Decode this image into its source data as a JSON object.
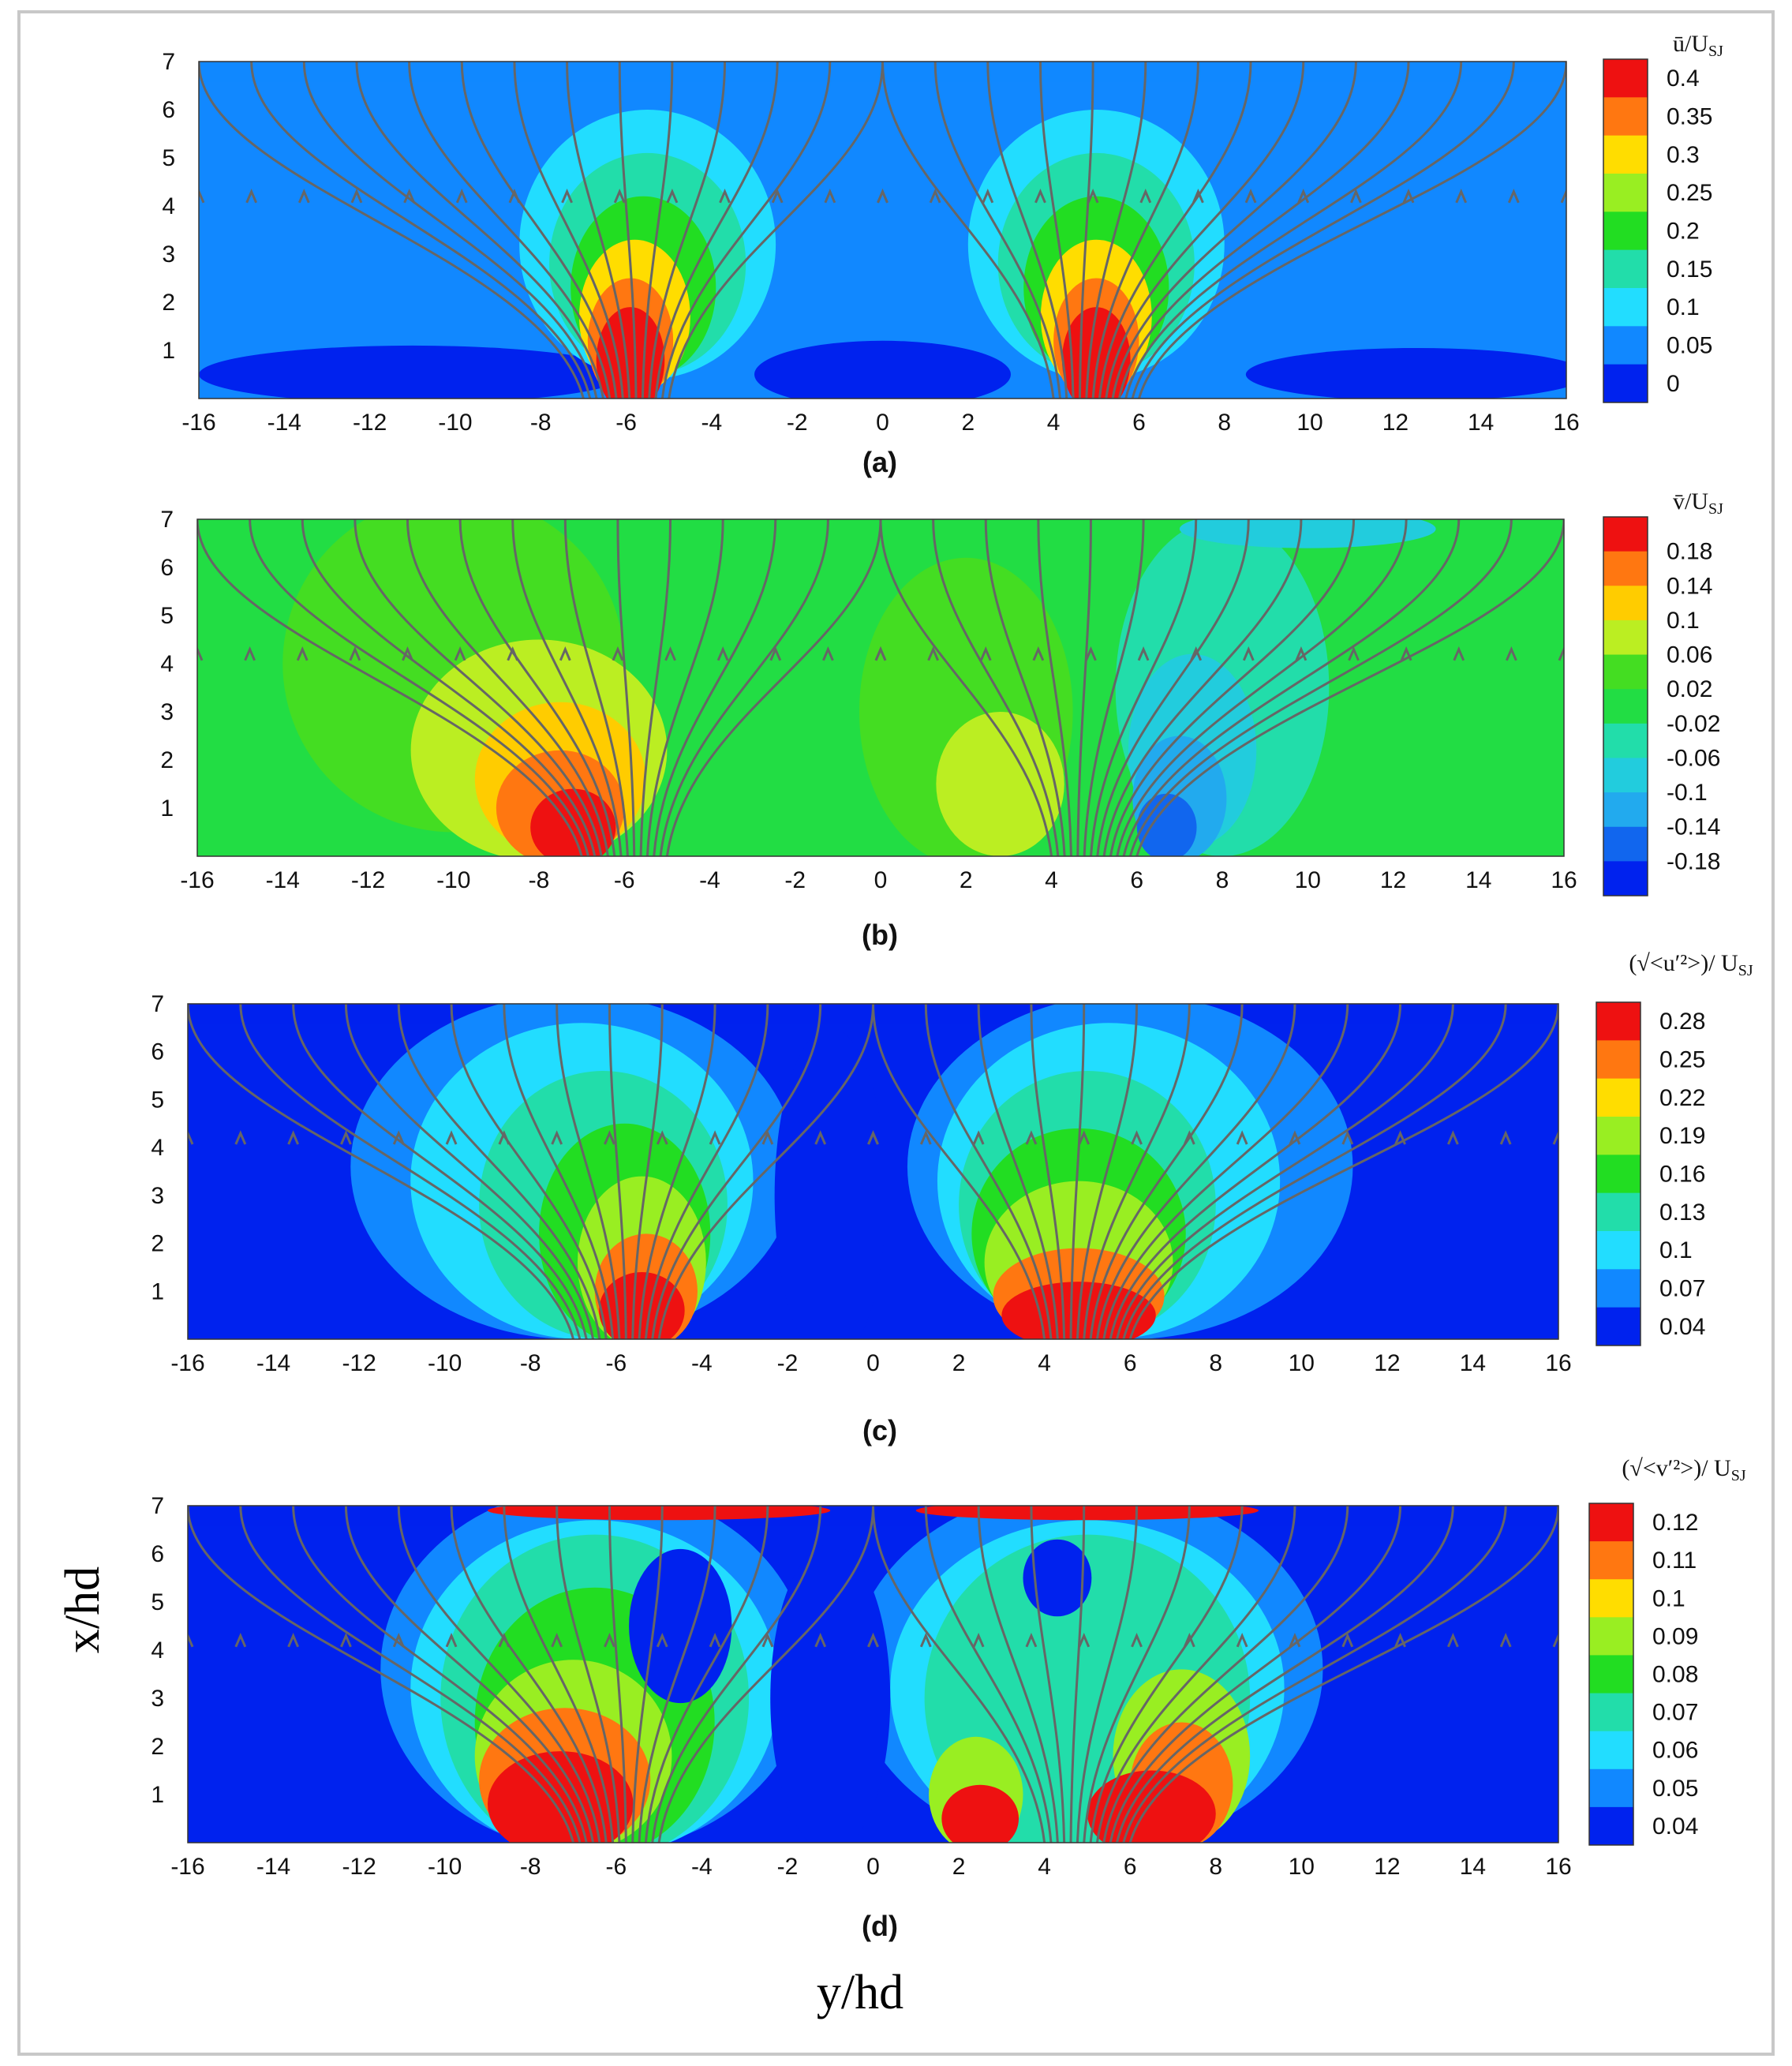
{
  "figure": {
    "xlabel": "y/hd",
    "ylabel": "x/hd"
  },
  "chart_data": [
    {
      "type": "heatmap",
      "panel": "(a)",
      "colorbar_title_main": "ū/U",
      "colorbar_title_sub": "SJ",
      "colorbar_ticks": [
        "0.4",
        "0.35",
        "0.3",
        "0.25",
        "0.2",
        "0.15",
        "0.1",
        "0.05",
        "0"
      ],
      "colorbar_colors": [
        "#ee1111",
        "#ff7711",
        "#ffdd00",
        "#99ee22",
        "#22dd22",
        "#22ddaa",
        "#22ddff",
        "#1188ff",
        "#0022ee"
      ],
      "background_level": 1,
      "x_ticks": [
        -16,
        -14,
        -12,
        -10,
        -8,
        -6,
        -4,
        -2,
        0,
        2,
        4,
        6,
        8,
        10,
        12,
        14,
        16
      ],
      "y_ticks": [
        1,
        2,
        3,
        4,
        5,
        6,
        7
      ],
      "xlim": [
        -16,
        16
      ],
      "ylim": [
        0,
        7
      ],
      "regions": [
        {
          "level": 0,
          "cx": -11,
          "cy": 0.5,
          "rx": 5,
          "ry": 0.6
        },
        {
          "level": 0,
          "cx": 0,
          "cy": 0.5,
          "rx": 3,
          "ry": 0.7
        },
        {
          "level": 0,
          "cx": 12.5,
          "cy": 0.5,
          "rx": 4,
          "ry": 0.55
        },
        {
          "level": 2,
          "cx": -5.5,
          "cy": 3.2,
          "rx": 3,
          "ry": 2.8
        },
        {
          "level": 3,
          "cx": -5.5,
          "cy": 2.8,
          "rx": 2.3,
          "ry": 2.3
        },
        {
          "level": 4,
          "cx": -5.6,
          "cy": 2.3,
          "rx": 1.7,
          "ry": 1.9
        },
        {
          "level": 6,
          "cx": -5.8,
          "cy": 1.7,
          "rx": 1.3,
          "ry": 1.6
        },
        {
          "level": 7,
          "cx": -5.9,
          "cy": 1.2,
          "rx": 1.0,
          "ry": 1.3
        },
        {
          "level": 8,
          "cx": -5.9,
          "cy": 0.8,
          "rx": 0.8,
          "ry": 1.1
        },
        {
          "level": 2,
          "cx": 5,
          "cy": 3.2,
          "rx": 3,
          "ry": 2.8
        },
        {
          "level": 3,
          "cx": 5,
          "cy": 2.8,
          "rx": 2.3,
          "ry": 2.3
        },
        {
          "level": 4,
          "cx": 5,
          "cy": 2.3,
          "rx": 1.7,
          "ry": 1.9
        },
        {
          "level": 6,
          "cx": 5,
          "cy": 1.7,
          "rx": 1.3,
          "ry": 1.6
        },
        {
          "level": 7,
          "cx": 5,
          "cy": 1.2,
          "rx": 1.0,
          "ry": 1.3
        },
        {
          "level": 8,
          "cx": 5,
          "cy": 0.8,
          "rx": 0.8,
          "ry": 1.1
        }
      ],
      "streamline_sources": [
        -7,
        4
      ]
    },
    {
      "type": "heatmap",
      "panel": "(b)",
      "colorbar_title_main": "v̄/U",
      "colorbar_title_sub": "SJ",
      "colorbar_ticks": [
        "0.18",
        "0.14",
        "0.1",
        "0.06",
        "0.02",
        "-0.02",
        "-0.06",
        "-0.1",
        "-0.14",
        "-0.18"
      ],
      "colorbar_colors": [
        "#ee1111",
        "#ff7711",
        "#ffcc00",
        "#bbee22",
        "#44dd22",
        "#22dd44",
        "#22ddaa",
        "#22ccdd",
        "#22aaee",
        "#1166ee",
        "#0022ee"
      ],
      "background_level": 5,
      "x_ticks": [
        -16,
        -14,
        -12,
        -10,
        -8,
        -6,
        -4,
        -2,
        0,
        2,
        4,
        6,
        8,
        10,
        12,
        14,
        16
      ],
      "y_ticks": [
        1,
        2,
        3,
        4,
        5,
        6,
        7
      ],
      "xlim": [
        -16,
        16
      ],
      "ylim": [
        0,
        7
      ],
      "regions": [
        {
          "level": 6,
          "cx": -10,
          "cy": 4,
          "rx": 4,
          "ry": 3.5
        },
        {
          "level": 7,
          "cx": -8,
          "cy": 2.2,
          "rx": 3,
          "ry": 2.3
        },
        {
          "level": 8,
          "cx": -7.5,
          "cy": 1.6,
          "rx": 2,
          "ry": 1.6
        },
        {
          "level": 9,
          "cx": -7.5,
          "cy": 1.0,
          "rx": 1.5,
          "ry": 1.2
        },
        {
          "level": 10,
          "cx": -7.2,
          "cy": 0.6,
          "rx": 1.0,
          "ry": 0.8
        },
        {
          "level": 6,
          "cx": 2,
          "cy": 3,
          "rx": 2.5,
          "ry": 3.2
        },
        {
          "level": 7,
          "cx": 2.8,
          "cy": 1.5,
          "rx": 1.5,
          "ry": 1.5
        },
        {
          "level": 4,
          "cx": 8,
          "cy": 3.5,
          "rx": 2.5,
          "ry": 3.5
        },
        {
          "level": 3,
          "cx": 7.3,
          "cy": 2.2,
          "rx": 1.5,
          "ry": 2.0
        },
        {
          "level": 2,
          "cx": 7,
          "cy": 1.2,
          "rx": 1.1,
          "ry": 1.3
        },
        {
          "level": 1,
          "cx": 6.7,
          "cy": 0.6,
          "rx": 0.7,
          "ry": 0.7
        },
        {
          "level": 3,
          "cx": 10,
          "cy": 6.8,
          "rx": 3,
          "ry": 0.4
        }
      ],
      "streamline_sources": [
        -7,
        4
      ]
    },
    {
      "type": "heatmap",
      "panel": "(c)",
      "colorbar_title_main": "(√<u′²>)/ U",
      "colorbar_title_sub": "SJ",
      "colorbar_ticks": [
        "0.28",
        "0.25",
        "0.22",
        "0.19",
        "0.16",
        "0.13",
        "0.1",
        "0.07",
        "0.04"
      ],
      "colorbar_colors": [
        "#ee1111",
        "#ff7711",
        "#ffdd00",
        "#99ee22",
        "#22dd22",
        "#22ddaa",
        "#22ddff",
        "#1188ff",
        "#0022ee"
      ],
      "background_level": 0,
      "x_ticks": [
        -16,
        -14,
        -12,
        -10,
        -8,
        -6,
        -4,
        -2,
        0,
        2,
        4,
        6,
        8,
        10,
        12,
        14,
        16
      ],
      "y_ticks": [
        1,
        2,
        3,
        4,
        5,
        6,
        7
      ],
      "xlim": [
        -16,
        16
      ],
      "ylim": [
        0,
        7
      ],
      "regions": [
        {
          "level": 1,
          "cx": -7,
          "cy": 3.6,
          "rx": 5.2,
          "ry": 3.6
        },
        {
          "level": 2,
          "cx": -6.8,
          "cy": 3.3,
          "rx": 4.0,
          "ry": 3.3
        },
        {
          "level": 3,
          "cx": -6.3,
          "cy": 2.8,
          "rx": 2.9,
          "ry": 2.8
        },
        {
          "level": 4,
          "cx": -5.8,
          "cy": 2.2,
          "rx": 2.0,
          "ry": 2.3
        },
        {
          "level": 5,
          "cx": -5.4,
          "cy": 1.6,
          "rx": 1.5,
          "ry": 1.8
        },
        {
          "level": 7,
          "cx": -5.3,
          "cy": 1.0,
          "rx": 1.2,
          "ry": 1.2
        },
        {
          "level": 8,
          "cx": -5.4,
          "cy": 0.6,
          "rx": 1.0,
          "ry": 0.8
        },
        {
          "level": 1,
          "cx": 6,
          "cy": 3.6,
          "rx": 5.2,
          "ry": 3.6
        },
        {
          "level": 2,
          "cx": 5.5,
          "cy": 3.3,
          "rx": 4.0,
          "ry": 3.3
        },
        {
          "level": 3,
          "cx": 5,
          "cy": 2.8,
          "rx": 3.0,
          "ry": 2.8
        },
        {
          "level": 4,
          "cx": 4.8,
          "cy": 2.2,
          "rx": 2.5,
          "ry": 2.2
        },
        {
          "level": 5,
          "cx": 4.8,
          "cy": 1.6,
          "rx": 2.2,
          "ry": 1.7
        },
        {
          "level": 7,
          "cx": 4.8,
          "cy": 0.9,
          "rx": 2.0,
          "ry": 1.0
        },
        {
          "level": 8,
          "cx": 4.8,
          "cy": 0.5,
          "rx": 1.8,
          "ry": 0.7
        },
        {
          "level": 0,
          "cx": -1,
          "cy": 3,
          "rx": 1.3,
          "ry": 3.5
        }
      ],
      "streamline_sources": [
        -7,
        4
      ]
    },
    {
      "type": "heatmap",
      "panel": "(d)",
      "colorbar_title_main": "(√<v′²>)/ U",
      "colorbar_title_sub": "SJ",
      "colorbar_ticks": [
        "0.12",
        "0.11",
        "0.1",
        "0.09",
        "0.08",
        "0.07",
        "0.06",
        "0.05",
        "0.04"
      ],
      "colorbar_colors": [
        "#ee1111",
        "#ff7711",
        "#ffdd00",
        "#99ee22",
        "#22dd22",
        "#22ddaa",
        "#22ddff",
        "#1188ff",
        "#0022ee"
      ],
      "background_level": 0,
      "x_ticks": [
        -16,
        -14,
        -12,
        -10,
        -8,
        -6,
        -4,
        -2,
        0,
        2,
        4,
        6,
        8,
        10,
        12,
        14,
        16
      ],
      "y_ticks": [
        1,
        2,
        3,
        4,
        5,
        6,
        7
      ],
      "xlim": [
        -16,
        16
      ],
      "ylim": [
        0,
        7
      ],
      "regions": [
        {
          "level": 1,
          "cx": -6.5,
          "cy": 3.6,
          "rx": 5.0,
          "ry": 3.8
        },
        {
          "level": 2,
          "cx": -6.5,
          "cy": 3.2,
          "rx": 4.3,
          "ry": 3.5
        },
        {
          "level": 3,
          "cx": -6.5,
          "cy": 3.0,
          "rx": 3.6,
          "ry": 3.4
        },
        {
          "level": 4,
          "cx": -6.5,
          "cy": 2.5,
          "rx": 2.8,
          "ry": 2.8
        },
        {
          "level": 5,
          "cx": -7,
          "cy": 1.8,
          "rx": 2.3,
          "ry": 2.0
        },
        {
          "level": 7,
          "cx": -7.2,
          "cy": 1.3,
          "rx": 2.0,
          "ry": 1.5
        },
        {
          "level": 8,
          "cx": -7.3,
          "cy": 0.8,
          "rx": 1.7,
          "ry": 1.1
        },
        {
          "level": 1,
          "cx": 5,
          "cy": 3.6,
          "rx": 5.5,
          "ry": 3.8
        },
        {
          "level": 2,
          "cx": 5,
          "cy": 3.2,
          "rx": 4.6,
          "ry": 3.5
        },
        {
          "level": 3,
          "cx": 5,
          "cy": 3.0,
          "rx": 3.8,
          "ry": 3.4
        },
        {
          "level": 5,
          "cx": 7.2,
          "cy": 1.8,
          "rx": 1.6,
          "ry": 1.8
        },
        {
          "level": 7,
          "cx": 7.2,
          "cy": 1.2,
          "rx": 1.2,
          "ry": 1.3
        },
        {
          "level": 8,
          "cx": 6.5,
          "cy": 0.6,
          "rx": 1.5,
          "ry": 0.9
        },
        {
          "level": 5,
          "cx": 2.4,
          "cy": 1.0,
          "rx": 1.1,
          "ry": 1.2
        },
        {
          "level": 8,
          "cx": 2.5,
          "cy": 0.5,
          "rx": 0.9,
          "ry": 0.7
        },
        {
          "level": 0,
          "cx": -1,
          "cy": 3,
          "rx": 1.4,
          "ry": 3.2
        },
        {
          "level": 0,
          "cx": -4.5,
          "cy": 4.5,
          "rx": 1.2,
          "ry": 1.6
        },
        {
          "level": 0,
          "cx": 4.3,
          "cy": 5.5,
          "rx": 0.8,
          "ry": 0.8
        },
        {
          "level": 8,
          "cx": -5,
          "cy": 6.9,
          "rx": 4,
          "ry": 0.2
        },
        {
          "level": 8,
          "cx": 5,
          "cy": 6.9,
          "rx": 4,
          "ry": 0.2
        }
      ],
      "streamline_sources": [
        -7,
        4
      ]
    }
  ]
}
